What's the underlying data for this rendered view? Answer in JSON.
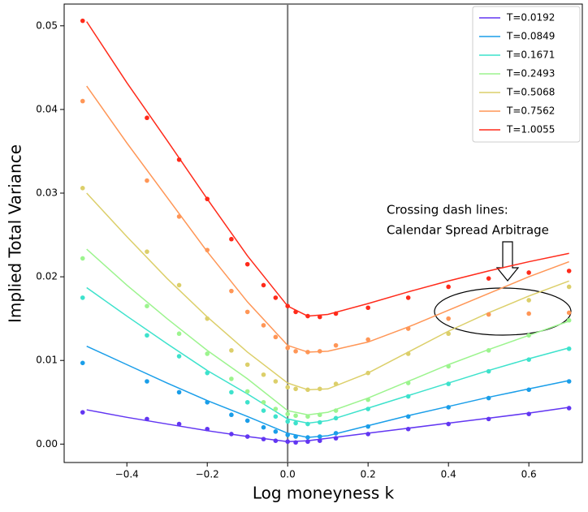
{
  "chart_data": {
    "type": "line-scatter",
    "x_label": "Log moneyness k",
    "y_label": "Implied Total Variance",
    "x": [
      -0.5,
      -0.4,
      -0.3,
      -0.2,
      -0.1,
      0,
      0.05,
      0.1,
      0.2,
      0.3,
      0.4,
      0.5,
      0.6,
      0.7
    ],
    "point_x": [
      -0.51,
      -0.35,
      -0.27,
      -0.2,
      -0.14,
      -0.1,
      -0.06,
      -0.03,
      0,
      0.02,
      0.05,
      0.08,
      0.12,
      0.2,
      0.3,
      0.4,
      0.5,
      0.6,
      0.7
    ],
    "series": [
      {
        "name": "T=0.0192",
        "color": "#6236f2",
        "values": [
          0.0041,
          0.0032,
          0.0024,
          0.0016,
          0.0009,
          0.0003,
          0.0004,
          0.0007,
          0.0013,
          0.0019,
          0.0025,
          0.0031,
          0.0037,
          0.0044
        ],
        "points": [
          0.0038,
          0.003,
          0.0024,
          0.0018,
          0.0012,
          0.0009,
          0.0006,
          0.0004,
          0.0003,
          0.0002,
          0.0003,
          0.0004,
          0.0007,
          0.0012,
          0.0018,
          0.0024,
          0.003,
          0.0036,
          0.0043
        ]
      },
      {
        "name": "T=0.0849",
        "color": "#1a9ee9",
        "values": [
          0.0117,
          0.0095,
          0.0073,
          0.0052,
          0.0033,
          0.0013,
          0.0008,
          0.001,
          0.0022,
          0.0034,
          0.0045,
          0.0056,
          0.0066,
          0.0076
        ],
        "points": [
          0.0097,
          0.0075,
          0.0062,
          0.005,
          0.0035,
          0.0028,
          0.002,
          0.0015,
          0.0011,
          0.0009,
          0.0008,
          0.0009,
          0.0013,
          0.0021,
          0.0033,
          0.0044,
          0.0055,
          0.0065,
          0.0075
        ]
      },
      {
        "name": "T=0.1671",
        "color": "#3de2cc",
        "values": [
          0.0187,
          0.0153,
          0.012,
          0.0088,
          0.006,
          0.003,
          0.0025,
          0.0028,
          0.0043,
          0.0058,
          0.0073,
          0.0088,
          0.0102,
          0.0115
        ],
        "points": [
          0.0175,
          0.013,
          0.0105,
          0.0085,
          0.0062,
          0.005,
          0.004,
          0.0033,
          0.0027,
          0.0025,
          0.0024,
          0.0026,
          0.0031,
          0.0042,
          0.0057,
          0.0072,
          0.0087,
          0.0101,
          0.0114
        ]
      },
      {
        "name": "T=0.2493",
        "color": "#9cf48e",
        "values": [
          0.0233,
          0.019,
          0.015,
          0.0112,
          0.0078,
          0.004,
          0.0035,
          0.0038,
          0.0055,
          0.0075,
          0.0095,
          0.0113,
          0.013,
          0.0147
        ],
        "points": [
          0.0222,
          0.0165,
          0.0132,
          0.0108,
          0.0078,
          0.0063,
          0.005,
          0.0042,
          0.0036,
          0.0034,
          0.0033,
          0.0035,
          0.004,
          0.0053,
          0.0073,
          0.0093,
          0.0112,
          0.013,
          0.0148
        ]
      },
      {
        "name": "T=0.5068",
        "color": "#dccf6a",
        "values": [
          0.03,
          0.0248,
          0.0198,
          0.0152,
          0.011,
          0.0073,
          0.0065,
          0.0066,
          0.0085,
          0.011,
          0.0135,
          0.0157,
          0.0177,
          0.0195
        ],
        "points": [
          0.0306,
          0.023,
          0.019,
          0.015,
          0.0112,
          0.0095,
          0.0083,
          0.0075,
          0.0068,
          0.0066,
          0.0065,
          0.0066,
          0.0072,
          0.0085,
          0.0108,
          0.0132,
          0.0155,
          0.0172,
          0.0188
        ]
      },
      {
        "name": "T=0.7562",
        "color": "#ff9656",
        "values": [
          0.0428,
          0.036,
          0.0295,
          0.023,
          0.017,
          0.0118,
          0.011,
          0.0111,
          0.0122,
          0.014,
          0.016,
          0.018,
          0.02,
          0.0218
        ],
        "points": [
          0.041,
          0.0315,
          0.0272,
          0.0232,
          0.0183,
          0.0158,
          0.0142,
          0.0128,
          0.0115,
          0.0111,
          0.011,
          0.0111,
          0.0118,
          0.0125,
          0.0138,
          0.015,
          0.0155,
          0.0156,
          0.0157
        ]
      },
      {
        "name": "T=1.0055",
        "color": "#ff2a1a",
        "values": [
          0.0505,
          0.0432,
          0.0363,
          0.0293,
          0.0225,
          0.0165,
          0.0153,
          0.0155,
          0.0168,
          0.0182,
          0.0195,
          0.0207,
          0.0218,
          0.0228
        ],
        "points": [
          0.0506,
          0.039,
          0.034,
          0.0293,
          0.0245,
          0.0215,
          0.019,
          0.0175,
          0.0165,
          0.0158,
          0.0153,
          0.0152,
          0.0156,
          0.0163,
          0.0175,
          0.0188,
          0.0198,
          0.0205,
          0.0207
        ]
      }
    ],
    "xlim": [
      -0.556,
      0.733
    ],
    "ylim": [
      -0.0022,
      0.0526
    ],
    "xticks": [
      {
        "value": -0.4,
        "label": "−0.4"
      },
      {
        "value": -0.2,
        "label": "−0.2"
      },
      {
        "value": 0,
        "label": "0.0"
      },
      {
        "value": 0.2,
        "label": "0.2"
      },
      {
        "value": 0.4,
        "label": "0.4"
      },
      {
        "value": 0.6,
        "label": "0.6"
      }
    ],
    "yticks": [
      {
        "value": 0,
        "label": "0.00"
      },
      {
        "value": 0.01,
        "label": "0.01"
      },
      {
        "value": 0.02,
        "label": "0.02"
      },
      {
        "value": 0.03,
        "label": "0.03"
      },
      {
        "value": 0.04,
        "label": "0.04"
      },
      {
        "value": 0.05,
        "label": "0.05"
      }
    ],
    "vline": 0,
    "legend": "upper right",
    "annotation": [
      "Crossing dash lines:",
      "Calendar Spread Arbitrage"
    ]
  }
}
